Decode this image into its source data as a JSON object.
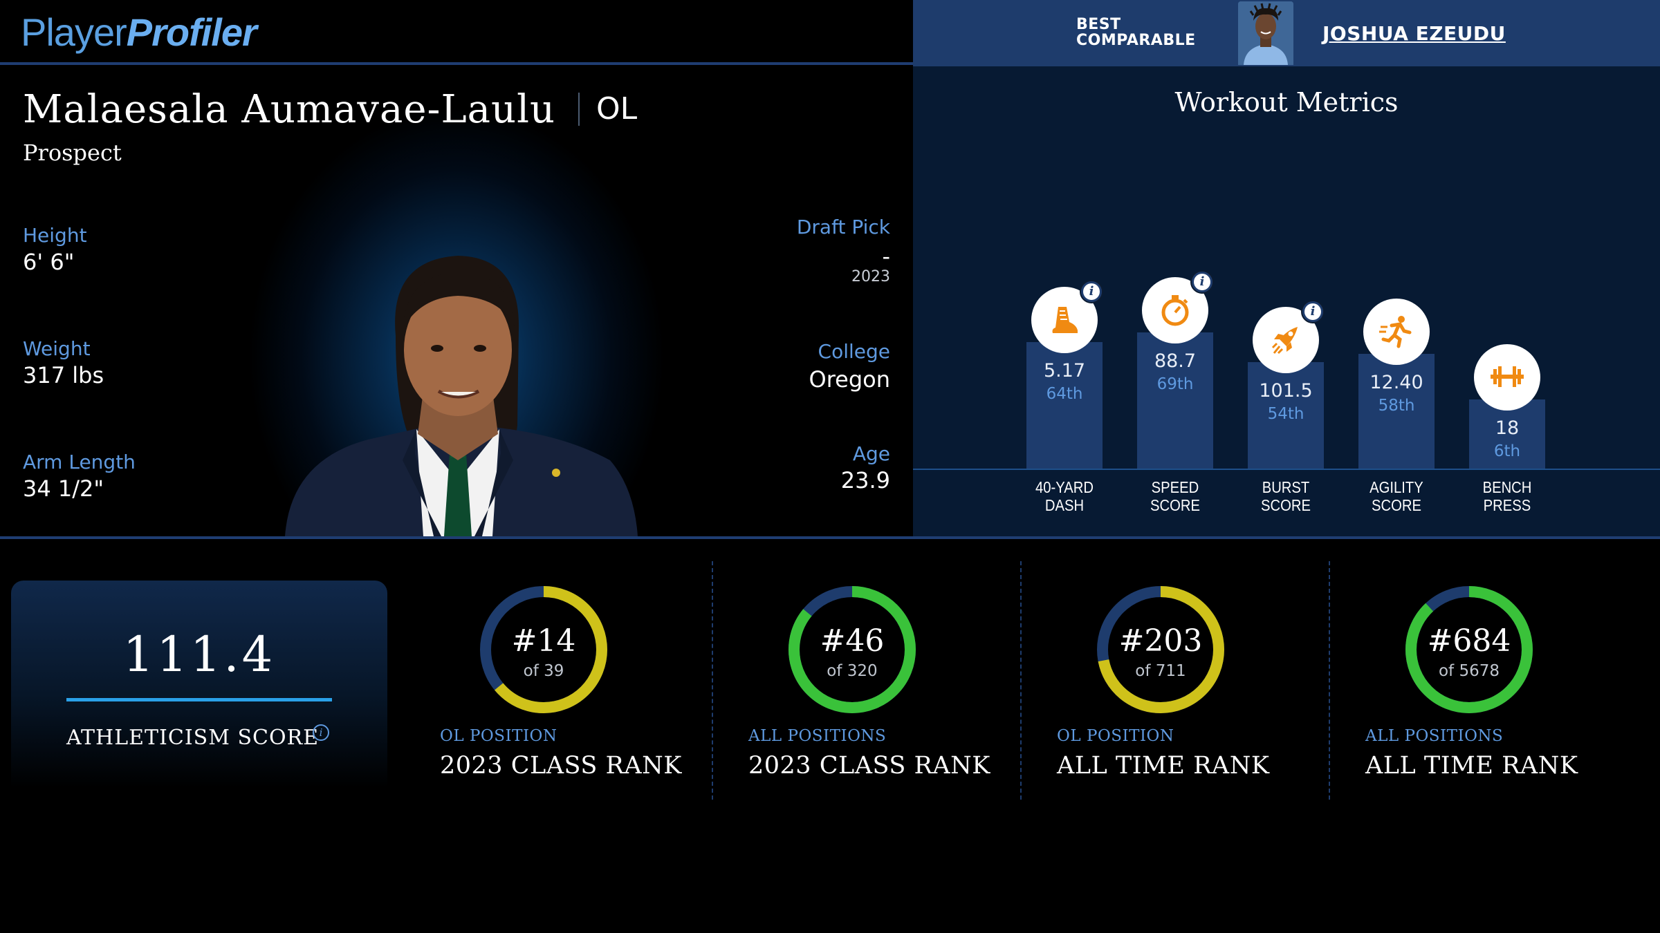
{
  "header": {
    "logo_part1": "Player",
    "logo_part2": "Profiler",
    "best_comparable_line1": "BEST",
    "best_comparable_line2": "COMPARABLE",
    "best_comparable_name": "JOSHUA EZEUDU"
  },
  "player": {
    "name": "Malaesala Aumavae-Laulu",
    "position": "OL",
    "status": "Prospect",
    "height_label": "Height",
    "height": "6' 6\"",
    "weight_label": "Weight",
    "weight": "317 lbs",
    "arm_label": "Arm Length",
    "arm": "34 1/2\"",
    "draft_label": "Draft Pick",
    "draft": "-",
    "draft_year": "2023",
    "college_label": "College",
    "college": "Oregon",
    "age_label": "Age",
    "age": "23.9"
  },
  "workout": {
    "title": "Workout Metrics",
    "metrics": [
      {
        "label1": "40-YARD",
        "label2": "DASH",
        "value": "5.17",
        "percentile": "64th",
        "pct": 64,
        "icon": "running-shoe-icon",
        "info": true
      },
      {
        "label1": "SPEED",
        "label2": "SCORE",
        "value": "88.7",
        "percentile": "69th",
        "pct": 69,
        "icon": "stopwatch-icon",
        "info": true
      },
      {
        "label1": "BURST",
        "label2": "SCORE",
        "value": "101.5",
        "percentile": "54th",
        "pct": 54,
        "icon": "rocket-icon",
        "info": true
      },
      {
        "label1": "AGILITY",
        "label2": "SCORE",
        "value": "12.40",
        "percentile": "58th",
        "pct": 58,
        "icon": "runner-icon",
        "info": false
      },
      {
        "label1": "BENCH",
        "label2": "PRESS",
        "value": "18",
        "percentile": "6th",
        "pct": 6,
        "icon": "barbell-icon",
        "info": false
      }
    ]
  },
  "athleticism": {
    "value": "111.4",
    "label": "ATHLETICISM SCORE"
  },
  "ranks": [
    {
      "num": "#14",
      "of": "of 39",
      "small": "OL POSITION",
      "big": "2023 CLASS RANK",
      "fraction": 0.64,
      "color": "#cfc21a"
    },
    {
      "num": "#46",
      "of": "of 320",
      "small": "ALL POSITIONS",
      "big": "2023 CLASS RANK",
      "fraction": 0.86,
      "color": "#3ac23a"
    },
    {
      "num": "#203",
      "of": "of 711",
      "small": "OL POSITION",
      "big": "ALL TIME RANK",
      "fraction": 0.72,
      "color": "#cfc21a"
    },
    {
      "num": "#684",
      "of": "of 5678",
      "small": "ALL POSITIONS",
      "big": "ALL TIME RANK",
      "fraction": 0.88,
      "color": "#3ac23a"
    }
  ],
  "colors": {
    "accent_blue": "#5f9ae0",
    "icon_orange": "#f08a12",
    "ring_track": "#1e3c6d"
  }
}
